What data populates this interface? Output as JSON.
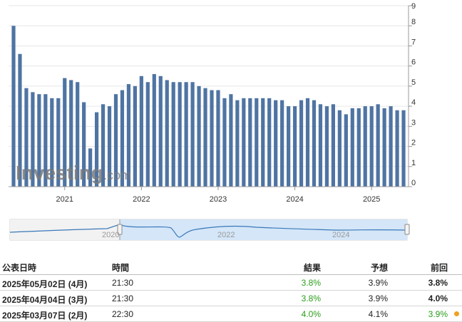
{
  "chart_data": {
    "type": "bar",
    "color": "#4f74a3",
    "ylim": [
      0,
      9
    ],
    "yticks": [
      "0",
      "1",
      "2",
      "3",
      "4",
      "5",
      "6",
      "7",
      "8",
      "9"
    ],
    "year_labels": [
      "2021",
      "2022",
      "2023",
      "2024",
      "2025"
    ],
    "values": [
      8.0,
      6.6,
      4.9,
      4.7,
      4.6,
      4.6,
      4.4,
      4.4,
      5.4,
      5.3,
      5.2,
      4.2,
      1.9,
      3.7,
      4.1,
      4.0,
      4.6,
      4.8,
      5.1,
      5.0,
      5.5,
      5.2,
      5.6,
      5.5,
      5.3,
      5.2,
      5.2,
      5.2,
      5.2,
      5.0,
      4.9,
      4.8,
      4.8,
      4.4,
      4.6,
      4.3,
      4.4,
      4.4,
      4.4,
      4.4,
      4.4,
      4.3,
      4.3,
      4.0,
      4.0,
      4.3,
      4.4,
      4.3,
      4.1,
      4.0,
      4.1,
      3.8,
      3.6,
      3.9,
      3.9,
      4.0,
      4.0,
      4.1,
      3.9,
      4.0,
      3.8,
      3.8
    ],
    "watermark": "Investing",
    "watermark_suffix": ".com",
    "navigator_labels": [
      "2020",
      "2022",
      "2024"
    ]
  },
  "table": {
    "headers": {
      "date": "公表日時",
      "time": "時間",
      "actual": "結果",
      "forecast": "予想",
      "previous": "前回"
    },
    "rows": [
      {
        "date": "2025年05月02日 (4月)",
        "time": "21:30",
        "actual": "3.8%",
        "forecast": "3.9%",
        "previous": "3.8%"
      },
      {
        "date": "2025年04月04日 (3月)",
        "time": "21:30",
        "actual": "3.8%",
        "forecast": "3.9%",
        "previous": "4.0%"
      },
      {
        "date": "2025年03月07日 (2月)",
        "time": "22:30",
        "actual": "4.0%",
        "forecast": "4.1%",
        "previous": "3.9%"
      }
    ]
  }
}
